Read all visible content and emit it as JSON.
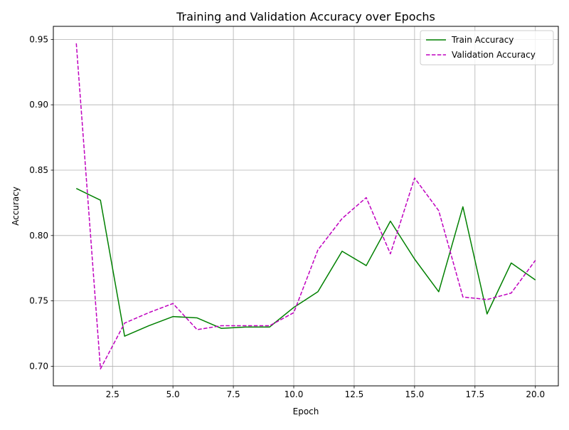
{
  "chart_data": {
    "type": "line",
    "title": "Training and Validation Accuracy over Epochs",
    "xlabel": "Epoch",
    "ylabel": "Accuracy",
    "xlim": [
      0.05,
      20.95
    ],
    "ylim": [
      0.685,
      0.96
    ],
    "grid": true,
    "legend_position": "top-right",
    "x_ticks": [
      2.5,
      5.0,
      7.5,
      10.0,
      12.5,
      15.0,
      17.5,
      20.0
    ],
    "x_tick_labels": [
      "2.5",
      "5.0",
      "7.5",
      "10.0",
      "12.5",
      "15.0",
      "17.5",
      "20.0"
    ],
    "y_ticks": [
      0.7,
      0.75,
      0.8,
      0.85,
      0.9,
      0.95
    ],
    "y_tick_labels": [
      "0.70",
      "0.75",
      "0.80",
      "0.85",
      "0.90",
      "0.95"
    ],
    "x": [
      1,
      2,
      3,
      4,
      5,
      6,
      7,
      8,
      9,
      10,
      11,
      12,
      13,
      14,
      15,
      16,
      17,
      18,
      19,
      20
    ],
    "series": [
      {
        "name": "Train Accuracy",
        "color": "#008000",
        "dash": "solid",
        "values": [
          0.836,
          0.827,
          0.723,
          0.731,
          0.738,
          0.737,
          0.729,
          0.73,
          0.73,
          0.745,
          0.757,
          0.788,
          0.777,
          0.811,
          0.782,
          0.757,
          0.822,
          0.74,
          0.779,
          0.766
        ]
      },
      {
        "name": "Validation Accuracy",
        "color": "#bf00bf",
        "dash": "dashed",
        "values": [
          0.947,
          0.698,
          0.733,
          0.741,
          0.748,
          0.728,
          0.731,
          0.731,
          0.731,
          0.741,
          0.789,
          0.813,
          0.829,
          0.786,
          0.844,
          0.819,
          0.753,
          0.751,
          0.756,
          0.781
        ]
      }
    ]
  }
}
